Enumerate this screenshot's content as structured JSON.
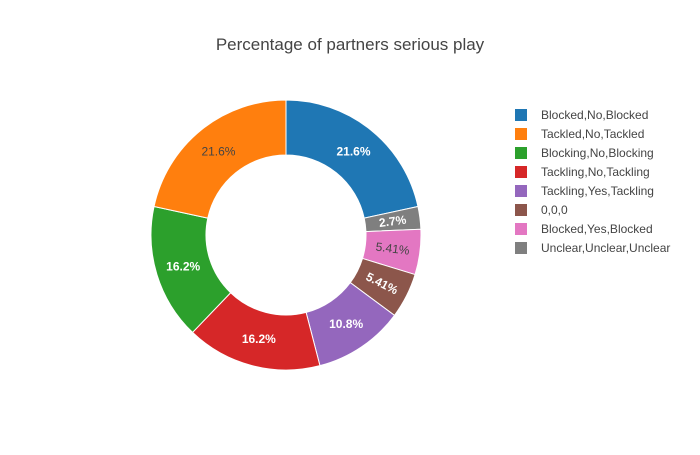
{
  "chart_data": {
    "type": "pie",
    "hole": true,
    "title": "Percentage of partners serious play",
    "legend_position": "right",
    "slices": [
      {
        "name": "Blocked,No,Blocked",
        "value": 21.6,
        "label": "21.6%",
        "color": "#1f77b4"
      },
      {
        "name": "Tackled,No,Tackled",
        "value": 21.6,
        "label": "21.6%",
        "color": "#ff7f0e"
      },
      {
        "name": "Blocking,No,Blocking",
        "value": 16.2,
        "label": "16.2%",
        "color": "#2ca02c"
      },
      {
        "name": "Tackling,No,Tackling",
        "value": 16.2,
        "label": "16.2%",
        "color": "#d62728"
      },
      {
        "name": "Tackling,Yes,Tackling",
        "value": 10.8,
        "label": "10.8%",
        "color": "#9467bd"
      },
      {
        "name": "0,0,0",
        "value": 5.41,
        "label": "5.41%",
        "color": "#8c564b"
      },
      {
        "name": "Blocked,Yes,Blocked",
        "value": 5.41,
        "label": "5.41%",
        "color": "#e377c2"
      },
      {
        "name": "Unclear,Unclear,Unclear",
        "value": 2.7,
        "label": "2.7%",
        "color": "#7f7f7f"
      }
    ],
    "display_order": [
      0,
      7,
      6,
      5,
      4,
      3,
      2,
      1
    ]
  }
}
